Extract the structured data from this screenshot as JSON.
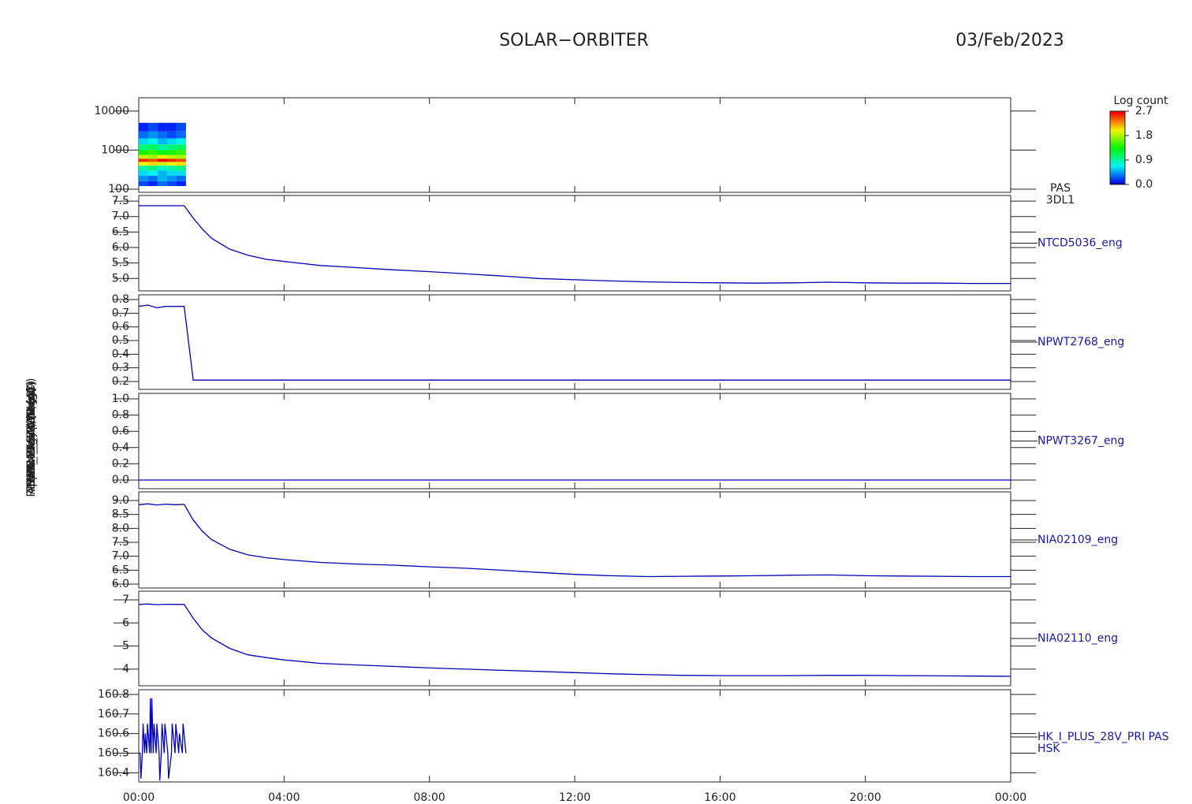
{
  "title": "SOLAR−ORBITER",
  "date": "03/Feb/2023",
  "chart_data": [
    {
      "type": "heatmap",
      "name": "PAS",
      "sublabel": "3DL1",
      "ylabel": "Energy (eV)",
      "log_y": true,
      "xlim": [
        0,
        24
      ],
      "ylim": [
        83,
        21900
      ],
      "yticks": [
        100,
        1000,
        10000
      ],
      "x_bins": [
        0,
        0.26,
        0.52,
        0.78,
        1.04,
        1.3
      ],
      "y_bins": [
        120,
        160,
        220,
        300,
        400,
        500,
        600,
        750,
        1000,
        1400,
        2000,
        3000,
        5000
      ],
      "z": [
        [
          0.2,
          0.1,
          0.3,
          0.2,
          0.1
        ],
        [
          0.4,
          0.3,
          0.5,
          0.4,
          0.3
        ],
        [
          0.6,
          0.7,
          0.5,
          0.6,
          0.6
        ],
        [
          0.9,
          1.0,
          0.8,
          0.9,
          1.0
        ],
        [
          2.0,
          2.1,
          1.9,
          2.0,
          2.1
        ],
        [
          2.6,
          2.5,
          2.7,
          2.6,
          2.5
        ],
        [
          1.9,
          1.8,
          2.0,
          1.9,
          1.8
        ],
        [
          1.4,
          1.5,
          1.3,
          1.4,
          1.5
        ],
        [
          1.0,
          1.1,
          0.9,
          1.0,
          1.1
        ],
        [
          0.6,
          0.7,
          0.5,
          0.6,
          0.7
        ],
        [
          0.3,
          0.4,
          0.3,
          0.2,
          0.3
        ],
        [
          0.1,
          0.2,
          0.1,
          0.1,
          0.2
        ]
      ],
      "colorbar_title": "Log count",
      "clim": [
        0,
        2.7
      ],
      "cticks": [
        {
          "value": 0,
          "label": "0.0"
        },
        0.9,
        1.8,
        2.7
      ]
    },
    {
      "type": "line",
      "ylabel": "Approx Temp (DegC)",
      "xlim": [
        0,
        24
      ],
      "ylim": [
        4.6,
        7.68
      ],
      "yticks": [
        {
          "value": 5,
          "label": "5.0"
        },
        5.5,
        {
          "value": 6,
          "label": "6.0"
        },
        6.5,
        {
          "value": 7,
          "label": "7.0"
        },
        7.5
      ],
      "x": [
        0,
        0.25,
        0.5,
        0.75,
        1,
        1.25,
        1.5,
        1.75,
        2,
        2.5,
        3,
        3.5,
        4,
        5,
        6,
        7,
        8,
        9,
        10,
        11,
        12,
        13,
        14,
        15,
        16,
        17,
        18,
        19,
        20,
        21,
        22,
        23,
        24
      ],
      "series": [
        {
          "name": "NTCD5036_eng",
          "color": "#0000b4",
          "values": [
            7.35,
            7.35,
            7.35,
            7.35,
            7.35,
            7.35,
            6.95,
            6.6,
            6.3,
            5.95,
            5.75,
            5.62,
            5.55,
            5.42,
            5.35,
            5.28,
            5.22,
            5.15,
            5.08,
            5.0,
            4.96,
            4.92,
            4.89,
            4.87,
            4.86,
            4.85,
            4.86,
            4.88,
            4.86,
            4.85,
            4.85,
            4.84,
            4.84
          ]
        }
      ]
    },
    {
      "type": "line",
      "ylabel": "SWA_PAS PWR (A)",
      "xlim": [
        0,
        24
      ],
      "ylim": [
        0.142,
        0.835
      ],
      "yticks": [
        0.2,
        0.3,
        0.4,
        0.5,
        0.6,
        0.7,
        0.8
      ],
      "x": [
        0,
        0.25,
        0.5,
        0.75,
        1,
        1.25,
        1.5,
        1.75,
        2,
        2.5,
        3,
        3.5,
        4,
        5,
        6,
        7,
        8,
        9,
        10,
        11,
        12,
        13,
        14,
        15,
        16,
        17,
        18,
        19,
        20,
        21,
        22,
        23,
        24
      ],
      "series": [
        {
          "name": "NPWT2768_eng",
          "color": "#0000b4",
          "values": [
            0.75,
            0.76,
            0.74,
            0.75,
            0.75,
            0.75,
            0.21,
            0.21,
            0.21,
            0.21,
            0.21,
            0.21,
            0.21,
            0.21,
            0.21,
            0.21,
            0.21,
            0.21,
            0.21,
            0.21,
            0.21,
            0.21,
            0.21,
            0.21,
            0.21,
            0.21,
            0.21,
            0.21,
            0.21,
            0.21,
            0.21,
            0.21,
            0.21
          ]
        }
      ]
    },
    {
      "type": "line",
      "ylabel": "SWA_EAS PWR (A)",
      "xlim": [
        0,
        24
      ],
      "ylim": [
        -0.107,
        1.068
      ],
      "yticks": [
        {
          "value": 0,
          "label": "0.0"
        },
        0.2,
        0.4,
        0.6,
        0.8,
        {
          "value": 1,
          "label": "1.0"
        }
      ],
      "x": [
        0,
        0.25,
        0.5,
        0.75,
        1,
        1.25,
        1.5,
        1.75,
        2,
        2.5,
        3,
        3.5,
        4,
        5,
        6,
        7,
        8,
        9,
        10,
        11,
        12,
        13,
        14,
        15,
        16,
        17,
        18,
        19,
        20,
        21,
        22,
        23,
        24
      ],
      "series": [
        {
          "name": "NPWT3267_eng",
          "color": "#0000b4",
          "values": [
            0,
            0,
            0,
            0,
            0,
            0,
            0,
            0,
            0,
            0,
            0,
            0,
            0,
            0,
            0,
            0,
            0,
            0,
            0,
            0,
            0,
            0,
            0,
            0,
            0,
            0,
            0,
            0,
            0,
            0,
            0,
            0,
            0
          ]
        }
      ]
    },
    {
      "type": "line",
      "ylabel": "THERM_CA (DegC)",
      "xlim": [
        0,
        24
      ],
      "ylim": [
        5.86,
        9.31
      ],
      "yticks": [
        {
          "value": 6,
          "label": "6.0"
        },
        6.5,
        {
          "value": 7,
          "label": "7.0"
        },
        7.5,
        {
          "value": 8,
          "label": "8.0"
        },
        8.5,
        {
          "value": 9,
          "label": "9.0"
        }
      ],
      "x": [
        0,
        0.25,
        0.5,
        0.75,
        1,
        1.25,
        1.5,
        1.75,
        2,
        2.5,
        3,
        3.5,
        4,
        5,
        6,
        7,
        8,
        9,
        10,
        11,
        12,
        13,
        14,
        15,
        16,
        17,
        18,
        19,
        20,
        21,
        22,
        23,
        24
      ],
      "series": [
        {
          "name": "NIA02109_eng",
          "color": "#0000b4",
          "values": [
            8.85,
            8.88,
            8.84,
            8.87,
            8.85,
            8.86,
            8.3,
            7.9,
            7.6,
            7.25,
            7.05,
            6.95,
            6.88,
            6.78,
            6.72,
            6.68,
            6.62,
            6.57,
            6.5,
            6.42,
            6.35,
            6.3,
            6.27,
            6.28,
            6.29,
            6.3,
            6.32,
            6.33,
            6.3,
            6.29,
            6.28,
            6.27,
            6.27
          ]
        }
      ]
    },
    {
      "type": "line",
      "ylabel": "THERM_MCA (DegC)",
      "xlim": [
        0,
        24
      ],
      "ylim": [
        3.28,
        7.375
      ],
      "yticks": [
        4,
        5,
        6,
        7
      ],
      "x": [
        0,
        0.25,
        0.5,
        0.75,
        1,
        1.25,
        1.5,
        1.75,
        2,
        2.5,
        3,
        3.5,
        4,
        5,
        6,
        7,
        8,
        9,
        10,
        11,
        12,
        13,
        14,
        15,
        16,
        17,
        18,
        19,
        20,
        21,
        22,
        23,
        24
      ],
      "series": [
        {
          "name": "NIA02110_eng",
          "color": "#0000b4",
          "values": [
            6.8,
            6.82,
            6.79,
            6.81,
            6.8,
            6.8,
            6.2,
            5.7,
            5.35,
            4.9,
            4.62,
            4.5,
            4.4,
            4.25,
            4.18,
            4.12,
            4.05,
            4.0,
            3.95,
            3.9,
            3.85,
            3.8,
            3.76,
            3.73,
            3.72,
            3.72,
            3.72,
            3.73,
            3.73,
            3.72,
            3.71,
            3.7,
            3.69
          ]
        }
      ]
    },
    {
      "type": "line",
      "ylabel": "RPDM_HK_IMON (mA)",
      "sublabel": "HSK",
      "xlim": [
        0,
        24
      ],
      "ylim": [
        160.353,
        160.824
      ],
      "yticks": [
        160.4,
        160.5,
        160.6,
        160.7,
        160.8
      ],
      "xticks": [
        {
          "value": 0,
          "label": "00:00"
        },
        {
          "value": 4,
          "label": "04:00"
        },
        {
          "value": 8,
          "label": "08:00"
        },
        {
          "value": 12,
          "label": "12:00"
        },
        {
          "value": 16,
          "label": "16:00"
        },
        {
          "value": 20,
          "label": "20:00"
        },
        {
          "value": 24,
          "label": "00:00"
        }
      ],
      "x": [
        0,
        0.04,
        0.06,
        0.1,
        0.12,
        0.16,
        0.18,
        0.22,
        0.24,
        0.3,
        0.32,
        0.34,
        0.36,
        0.4,
        0.42,
        0.48,
        0.5,
        0.56,
        0.58,
        0.62,
        0.64,
        0.7,
        0.72,
        0.8,
        0.82,
        0.9,
        0.92,
        1.0,
        1.02,
        1.1,
        1.12,
        1.2,
        1.22,
        1.3
      ],
      "series": [
        {
          "name": "HK_I_PLUS_28V_PRI PAS",
          "color": "#0000b4",
          "values": [
            160.5,
            160.5,
            160.37,
            160.5,
            160.65,
            160.5,
            160.6,
            160.5,
            160.65,
            160.5,
            160.78,
            160.5,
            160.78,
            160.5,
            160.65,
            160.5,
            160.65,
            160.5,
            160.36,
            160.5,
            160.65,
            160.5,
            160.65,
            160.5,
            160.37,
            160.5,
            160.65,
            160.5,
            160.65,
            160.5,
            160.6,
            160.5,
            160.65,
            160.5
          ]
        }
      ]
    }
  ]
}
